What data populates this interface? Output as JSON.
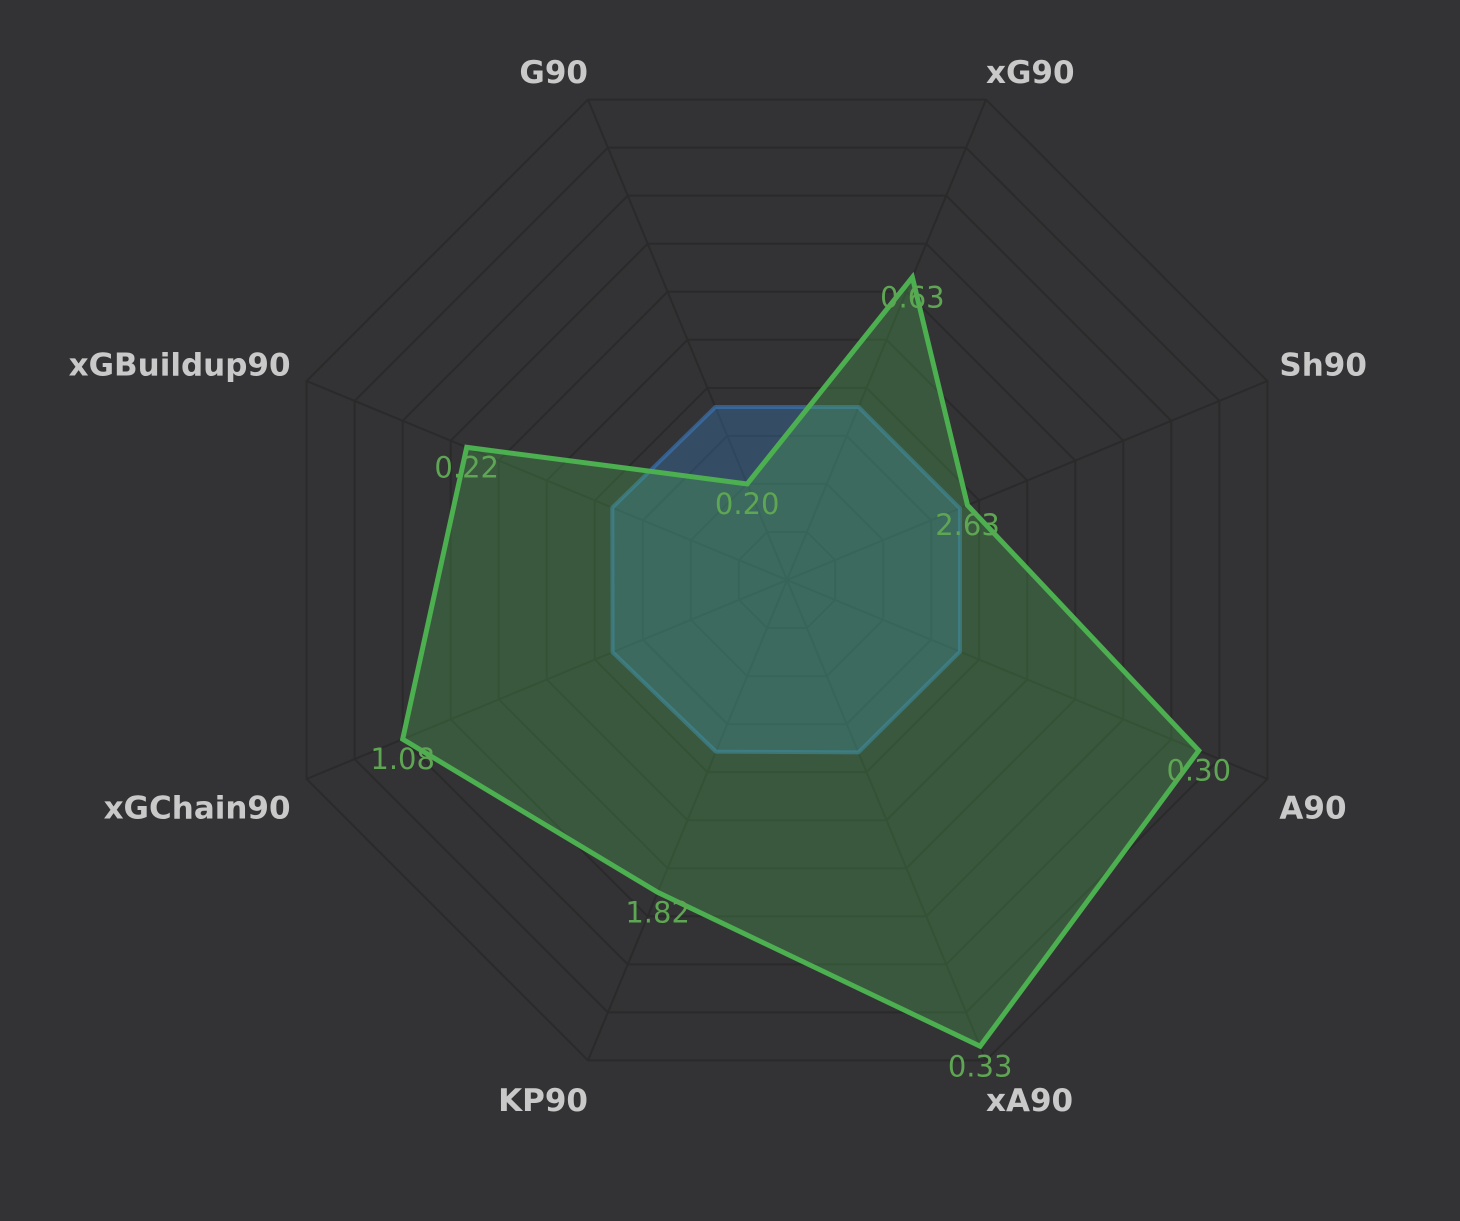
{
  "chart_data": {
    "type": "radar",
    "axes": [
      {
        "label": "G90",
        "lim": [
          0,
          1
        ]
      },
      {
        "label": "xG90",
        "lim": [
          0,
          1
        ]
      },
      {
        "label": "Sh90",
        "lim": [
          0,
          7
        ]
      },
      {
        "label": "A90",
        "lim": [
          0,
          0.35
        ]
      },
      {
        "label": "xA90",
        "lim": [
          0,
          0.34
        ]
      },
      {
        "label": "KP90",
        "lim": [
          0,
          2.8
        ]
      },
      {
        "label": "xGChain90",
        "lim": [
          0,
          1.35
        ]
      },
      {
        "label": "xGBuildup90",
        "lim": [
          0,
          0.33
        ]
      }
    ],
    "rings": 10,
    "series": [
      {
        "color": "#3a7bbf",
        "values": [
          0.36,
          0.36,
          2.52,
          0.126,
          0.122,
          1.0,
          0.49,
          0.12
        ]
      },
      {
        "color": "#4caf50",
        "values": [
          0.2,
          0.63,
          2.63,
          0.3,
          0.33,
          1.82,
          1.08,
          0.22
        ],
        "value_labels": [
          "0.20",
          "0.63",
          "2.63",
          "0.30",
          "0.33",
          "1.82",
          "1.08",
          "0.22"
        ]
      }
    ]
  }
}
